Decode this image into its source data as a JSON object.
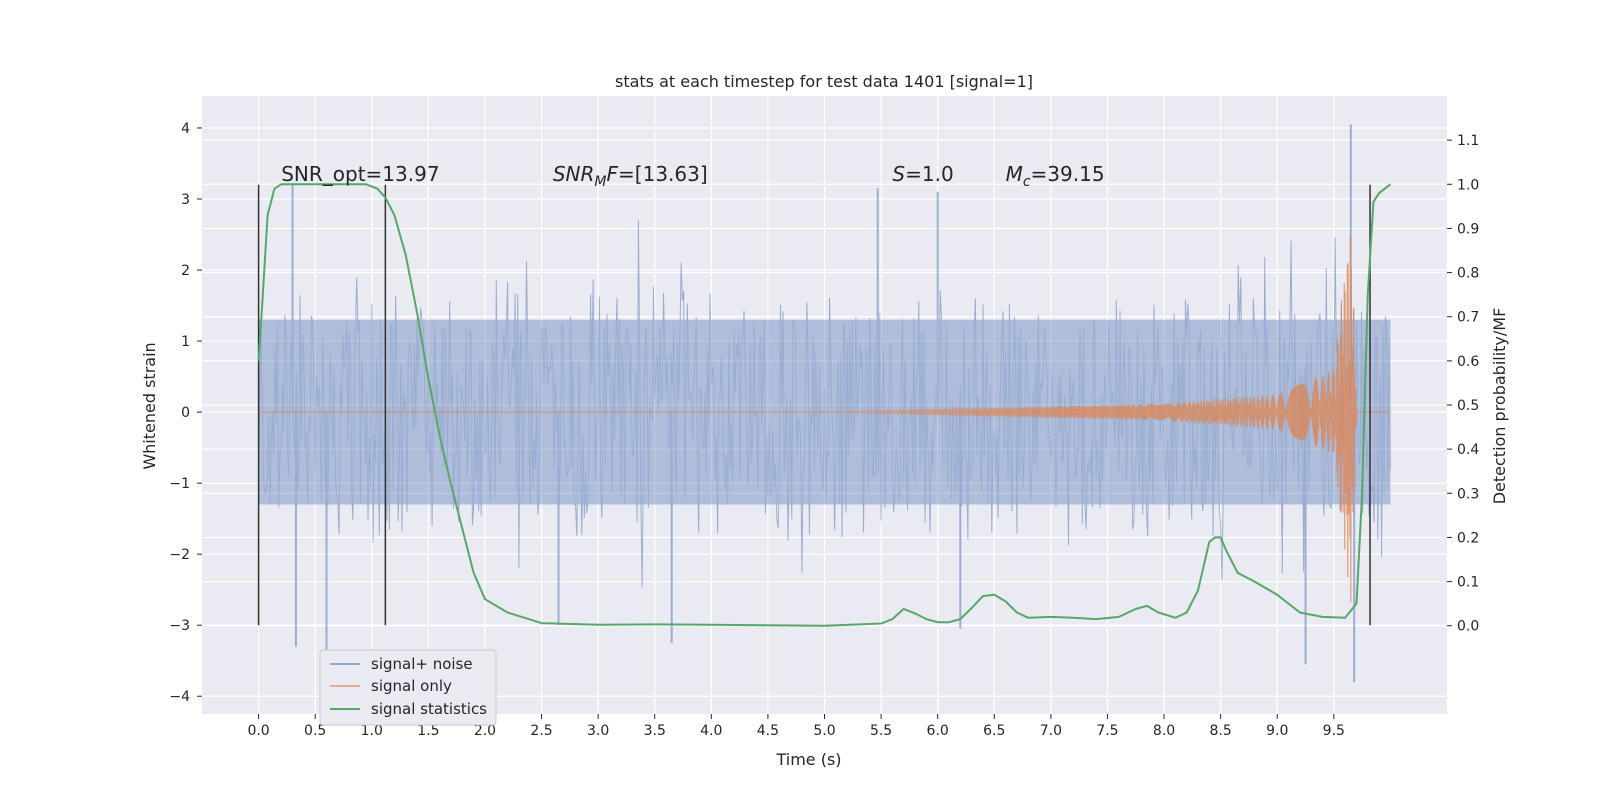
{
  "chart_data": {
    "type": "line",
    "title": "stats at each timestep for test data 1401 [signal=1]",
    "xlabel": "Time (s)",
    "ylabel_left": "Whitened strain",
    "ylabel_right": "Detection probability/MF",
    "xlim": [
      -0.5,
      10.5
    ],
    "ylim_left": [
      -4.25,
      4.45
    ],
    "ylim_right": [
      -0.2,
      1.2
    ],
    "xticks": [
      0.0,
      0.5,
      1.0,
      1.5,
      2.0,
      2.5,
      3.0,
      3.5,
      4.0,
      4.5,
      5.0,
      5.5,
      6.0,
      6.5,
      7.0,
      7.5,
      8.0,
      8.5,
      9.0,
      9.5
    ],
    "xtick_labels": [
      "0.0",
      "0.5",
      "1.0",
      "1.5",
      "2.0",
      "2.5",
      "3.0",
      "3.5",
      "4.0",
      "4.5",
      "5.0",
      "5.5",
      "6.0",
      "6.5",
      "7.0",
      "7.5",
      "8.0",
      "8.5",
      "9.0",
      "9.5"
    ],
    "yticks_left": [
      4,
      3,
      2,
      1,
      0,
      -1,
      -2,
      -3,
      -4
    ],
    "ytick_labels_left": [
      "4",
      "3",
      "2",
      "1",
      "0",
      "−1",
      "−2",
      "−3",
      "−4"
    ],
    "yticks_right": [
      1.1,
      1.0,
      0.9,
      0.8,
      0.7,
      0.6,
      0.5,
      0.4,
      0.3,
      0.2,
      0.1,
      0.0
    ],
    "ytick_labels_right": [
      "1.1",
      "1.0",
      "0.9",
      "0.8",
      "0.7",
      "0.6",
      "0.5",
      "0.4",
      "0.3",
      "0.2",
      "0.1",
      "0.0"
    ],
    "grid": true,
    "legend_position": "lower-left",
    "series": [
      {
        "name": "signal+ noise",
        "axis": "left",
        "color": "#4c72b0",
        "x_range": [
          0.0,
          10.0
        ],
        "typical_range": [
          -1.3,
          1.3
        ],
        "extremes": [
          {
            "x": 0.3,
            "y": 3.2
          },
          {
            "x": 0.33,
            "y": -3.3
          },
          {
            "x": 0.6,
            "y": -3.6
          },
          {
            "x": 2.65,
            "y": -3.0
          },
          {
            "x": 3.65,
            "y": -3.25
          },
          {
            "x": 5.47,
            "y": 3.15
          },
          {
            "x": 6.0,
            "y": 3.1
          },
          {
            "x": 6.2,
            "y": -3.05
          },
          {
            "x": 9.25,
            "y": -3.55
          },
          {
            "x": 9.65,
            "y": 4.05
          },
          {
            "x": 9.68,
            "y": -3.8
          }
        ]
      },
      {
        "name": "signal only",
        "axis": "left",
        "color": "#dd8452",
        "chirp": [
          {
            "x": 0.0,
            "amplitude": 0.0
          },
          {
            "x": 5.0,
            "amplitude": 0.0
          },
          {
            "x": 6.5,
            "amplitude": 0.06
          },
          {
            "x": 8.0,
            "amplitude": 0.12
          },
          {
            "x": 9.0,
            "amplitude": 0.25
          },
          {
            "x": 9.5,
            "amplitude": 0.6
          },
          {
            "x": 9.65,
            "amplitude": 2.7
          },
          {
            "x": 9.7,
            "amplitude": 0.0
          }
        ]
      },
      {
        "name": "signal statistics",
        "axis": "right",
        "color": "#55a868",
        "x": [
          0.0,
          0.03,
          0.08,
          0.14,
          0.2,
          0.3,
          0.5,
          0.75,
          0.95,
          1.05,
          1.12,
          1.2,
          1.3,
          1.4,
          1.5,
          1.6,
          1.7,
          1.8,
          1.9,
          2.0,
          2.2,
          2.5,
          3.0,
          3.5,
          4.0,
          4.5,
          5.0,
          5.5,
          5.6,
          5.7,
          5.8,
          5.9,
          6.0,
          6.1,
          6.2,
          6.3,
          6.4,
          6.5,
          6.6,
          6.7,
          6.8,
          7.0,
          7.2,
          7.4,
          7.6,
          7.75,
          7.85,
          7.95,
          8.1,
          8.2,
          8.3,
          8.4,
          8.45,
          8.5,
          8.55,
          8.65,
          8.8,
          9.0,
          9.2,
          9.4,
          9.6,
          9.7,
          9.75,
          9.8,
          9.85,
          9.9,
          9.95,
          10.0
        ],
        "y": [
          0.6,
          0.72,
          0.93,
          0.99,
          1.0,
          1.0,
          1.0,
          1.0,
          1.0,
          0.99,
          0.97,
          0.93,
          0.84,
          0.71,
          0.56,
          0.43,
          0.32,
          0.22,
          0.12,
          0.06,
          0.03,
          0.006,
          0.002,
          0.003,
          0.002,
          0.001,
          0.0,
          0.005,
          0.015,
          0.038,
          0.028,
          0.015,
          0.008,
          0.008,
          0.015,
          0.04,
          0.067,
          0.07,
          0.055,
          0.03,
          0.018,
          0.02,
          0.018,
          0.015,
          0.02,
          0.038,
          0.045,
          0.03,
          0.018,
          0.03,
          0.08,
          0.19,
          0.2,
          0.2,
          0.17,
          0.12,
          0.1,
          0.07,
          0.03,
          0.02,
          0.018,
          0.05,
          0.3,
          0.75,
          0.96,
          0.98,
          0.99,
          1.0
        ]
      }
    ],
    "markers": [
      {
        "x": 0.0,
        "y_range": [
          -3.0,
          3.2
        ],
        "color": "#333333"
      },
      {
        "x": 1.12,
        "y_range": [
          -3.0,
          3.2
        ],
        "color": "#333333"
      },
      {
        "x": 9.82,
        "y_range": [
          -3.0,
          3.2
        ],
        "color": "#333333"
      }
    ],
    "annotations": [
      {
        "x": 0.2,
        "y": 3.25,
        "text": "SNR_opt=13.97",
        "math": false
      },
      {
        "x": 2.6,
        "y": 3.25,
        "main": "SNR",
        "sub": "M",
        "rest": "F=[13.63]",
        "math": true
      },
      {
        "x": 5.6,
        "y": 3.25,
        "main": "S",
        "sub": "",
        "rest": "=1.0",
        "math": true
      },
      {
        "x": 6.6,
        "y": 3.25,
        "main": "M",
        "sub": "c",
        "rest": "=39.15",
        "math": true
      }
    ]
  }
}
